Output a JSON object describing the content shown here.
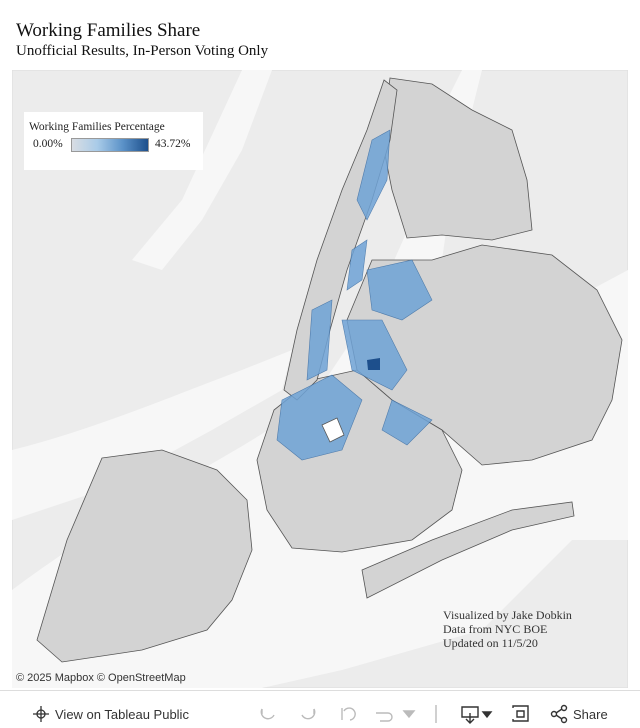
{
  "header": {
    "title": "Working Families Share",
    "subtitle": "Unofficial Results, In-Person Voting Only"
  },
  "legend": {
    "title": "Working Families Percentage",
    "min_label": "0.00%",
    "max_label": "43.72%"
  },
  "credits": [
    "Visualized by Jake Dobkin",
    "Data from NYC BOE",
    "Updated on 11/5/20"
  ],
  "attribution": "© 2025 Mapbox © OpenStreetMap",
  "toolbar": {
    "view_label": "View on Tableau Public",
    "share_label": "Share"
  }
}
